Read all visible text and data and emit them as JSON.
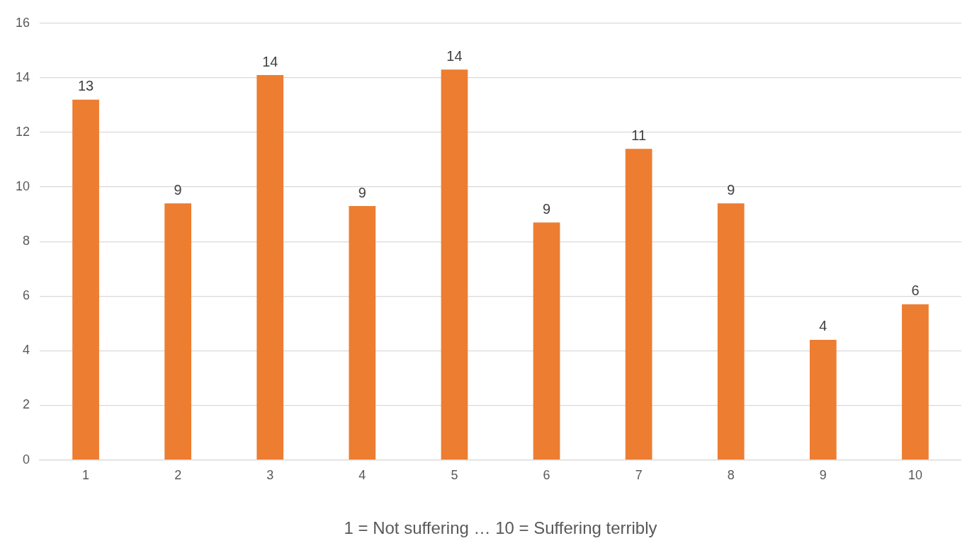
{
  "chart_data": {
    "type": "bar",
    "xlabel": "1 = Not suffering … 10 = Suffering terribly",
    "categories": [
      "1",
      "2",
      "3",
      "4",
      "5",
      "6",
      "7",
      "8",
      "9",
      "10"
    ],
    "values": [
      13.2,
      9.4,
      14.1,
      9.3,
      14.3,
      8.7,
      11.4,
      9.4,
      4.4,
      5.7
    ],
    "value_labels": [
      "13",
      "9",
      "14",
      "9",
      "14",
      "9",
      "11",
      "9",
      "4",
      "6"
    ],
    "color": "#ed7d31",
    "ylim": [
      0,
      16
    ],
    "yticks": [
      0,
      2,
      4,
      6,
      8,
      10,
      12,
      14,
      16
    ],
    "grid": "y",
    "legend": false
  }
}
